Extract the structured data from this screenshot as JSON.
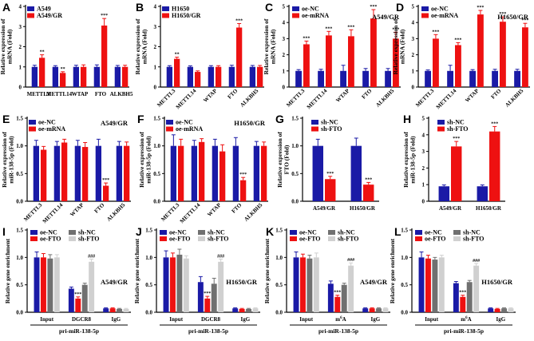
{
  "figure_caption_less": true,
  "colors": {
    "blue": "#1a1aa6",
    "red": "#ee1111",
    "dgray": "#707070",
    "lgray": "#d0d0d0",
    "axis": "#000000"
  },
  "chart_data": [
    {
      "id": "A",
      "type": "bar",
      "ylabel": "Relative expression of mRNA (Fold)",
      "ylim": [
        0,
        4
      ],
      "yticks": [
        0,
        1,
        2,
        3,
        4
      ],
      "categories": [
        "METTL3",
        "METTL14",
        "WTAP",
        "FTO",
        "ALKBH5"
      ],
      "cat_rotate": false,
      "series": [
        {
          "name": "A549",
          "color": "blue",
          "values": [
            1.0,
            1.0,
            1.0,
            1.0,
            1.0
          ],
          "errors": [
            0.08,
            0.06,
            0.08,
            0.1,
            0.07
          ]
        },
        {
          "name": "A549/GR",
          "color": "red",
          "values": [
            1.45,
            0.7,
            1.0,
            3.05,
            1.0
          ],
          "errors": [
            0.15,
            0.06,
            0.1,
            0.35,
            0.08
          ]
        }
      ],
      "sig": [
        {
          "series": 1,
          "cat": 0,
          "text": "**"
        },
        {
          "series": 1,
          "cat": 1,
          "text": "**"
        },
        {
          "series": 1,
          "cat": 3,
          "text": "***"
        }
      ]
    },
    {
      "id": "B",
      "type": "bar",
      "ylabel": "Relative expression of mRNA (Fold)",
      "ylim": [
        0,
        4
      ],
      "yticks": [
        0,
        1,
        2,
        3,
        4
      ],
      "categories": [
        "METTL3",
        "METTL14",
        "WTAP",
        "FTO",
        "ALKBH5"
      ],
      "cat_rotate": true,
      "series": [
        {
          "name": "H1650",
          "color": "blue",
          "values": [
            1.0,
            1.0,
            1.0,
            1.0,
            1.0
          ],
          "errors": [
            0.06,
            0.05,
            0.06,
            0.08,
            0.07
          ]
        },
        {
          "name": "H1650/GR",
          "color": "red",
          "values": [
            1.4,
            0.75,
            1.0,
            2.95,
            1.0
          ],
          "errors": [
            0.08,
            0.05,
            0.06,
            0.2,
            0.07
          ]
        }
      ],
      "sig": [
        {
          "series": 1,
          "cat": 0,
          "text": "**"
        },
        {
          "series": 1,
          "cat": 3,
          "text": "***"
        }
      ]
    },
    {
      "id": "C",
      "type": "bar",
      "ylabel": "Relative expression of mRNA (Fold)",
      "ylim": [
        0,
        5
      ],
      "yticks": [
        0,
        1,
        2,
        3,
        4,
        5
      ],
      "categories": [
        "METTL3",
        "METTL14",
        "WTAP",
        "FTO",
        "ALKBH5"
      ],
      "cat_rotate": true,
      "annotation": "A549/GR",
      "series": [
        {
          "name": "oe-NC",
          "color": "blue",
          "values": [
            1.0,
            1.0,
            1.0,
            1.0,
            1.0
          ],
          "errors": [
            0.08,
            0.1,
            0.35,
            0.15,
            0.15
          ]
        },
        {
          "name": "oe-mRNA",
          "color": "red",
          "values": [
            2.65,
            3.2,
            3.15,
            4.25,
            3.0
          ],
          "errors": [
            0.2,
            0.25,
            0.4,
            0.55,
            0.4
          ]
        }
      ],
      "sig": [
        {
          "series": 1,
          "cat": 0,
          "text": "***"
        },
        {
          "series": 1,
          "cat": 1,
          "text": "***"
        },
        {
          "series": 1,
          "cat": 2,
          "text": "***"
        },
        {
          "series": 1,
          "cat": 3,
          "text": "***"
        },
        {
          "series": 1,
          "cat": 4,
          "text": "***"
        }
      ]
    },
    {
      "id": "D",
      "type": "bar",
      "ylabel": "Relative expression of mRNA (Fold)",
      "ylim": [
        0,
        5
      ],
      "yticks": [
        0,
        1,
        2,
        3,
        4,
        5
      ],
      "categories": [
        "METTL3",
        "METTL14",
        "WTAP",
        "FTO",
        "ALKBH5"
      ],
      "cat_rotate": true,
      "annotation": "H1650/GR",
      "series": [
        {
          "name": "oe-NC",
          "color": "blue",
          "values": [
            1.0,
            1.0,
            1.0,
            1.0,
            1.0
          ],
          "errors": [
            0.06,
            0.35,
            0.08,
            0.1,
            0.1
          ]
        },
        {
          "name": "oe-mRNA",
          "color": "red",
          "values": [
            3.0,
            2.6,
            4.5,
            4.05,
            3.7
          ],
          "errors": [
            0.25,
            0.15,
            0.25,
            0.3,
            0.25
          ]
        }
      ],
      "sig": [
        {
          "series": 1,
          "cat": 0,
          "text": "***"
        },
        {
          "series": 1,
          "cat": 1,
          "text": "***"
        },
        {
          "series": 1,
          "cat": 2,
          "text": "***"
        },
        {
          "series": 1,
          "cat": 3,
          "text": "***"
        },
        {
          "series": 1,
          "cat": 4,
          "text": "***"
        }
      ]
    },
    {
      "id": "E",
      "type": "bar",
      "ylabel": "Relative expression of miR-138-5p (Fold)",
      "ylim": [
        0,
        1.5
      ],
      "yticks": [
        0.0,
        0.5,
        1.0,
        1.5
      ],
      "categories": [
        "METTL3",
        "METTL14",
        "WTAP",
        "FTO",
        "ALKBH5"
      ],
      "cat_rotate": true,
      "annotation": "A549/GR",
      "series": [
        {
          "name": "oe-NC",
          "color": "blue",
          "values": [
            1.0,
            1.0,
            1.0,
            1.0,
            1.0
          ],
          "errors": [
            0.1,
            0.08,
            0.1,
            0.12,
            0.08
          ]
        },
        {
          "name": "oe-mRNA",
          "color": "red",
          "values": [
            0.93,
            1.06,
            0.98,
            0.28,
            1.0
          ],
          "errors": [
            0.06,
            0.06,
            0.08,
            0.05,
            0.07
          ]
        }
      ],
      "sig": [
        {
          "series": 1,
          "cat": 3,
          "text": "***"
        }
      ]
    },
    {
      "id": "F",
      "type": "bar",
      "ylabel": "Relative expression of miR-138-5p (Fold)",
      "ylim": [
        0,
        1.5
      ],
      "yticks": [
        0.0,
        0.5,
        1.0,
        1.5
      ],
      "categories": [
        "METTL3",
        "METTL14",
        "WTAP",
        "FTO",
        "ALKBH5"
      ],
      "cat_rotate": true,
      "annotation": "H1650/GR",
      "series": [
        {
          "name": "oe-NC",
          "color": "blue",
          "values": [
            1.0,
            1.0,
            1.0,
            1.0,
            1.0
          ],
          "errors": [
            0.2,
            0.1,
            0.12,
            0.15,
            0.08
          ]
        },
        {
          "name": "oe-mRNA",
          "color": "red",
          "values": [
            1.0,
            1.07,
            0.9,
            0.38,
            1.0
          ],
          "errors": [
            0.12,
            0.06,
            0.12,
            0.05,
            0.07
          ]
        }
      ],
      "sig": [
        {
          "series": 1,
          "cat": 3,
          "text": "***"
        }
      ]
    },
    {
      "id": "G",
      "type": "bar",
      "ylabel": "Relative expression of FTO (Fold)",
      "ylim": [
        0,
        1.5
      ],
      "yticks": [
        0.0,
        0.5,
        1.0,
        1.5
      ],
      "categories": [
        "A549/GR",
        "H1650/GR"
      ],
      "cat_rotate": false,
      "series": [
        {
          "name": "sh-NC",
          "color": "blue",
          "values": [
            1.0,
            1.0
          ],
          "errors": [
            0.12,
            0.14
          ]
        },
        {
          "name": "sh-FTO",
          "color": "red",
          "values": [
            0.4,
            0.3
          ],
          "errors": [
            0.05,
            0.04
          ]
        }
      ],
      "sig": [
        {
          "series": 1,
          "cat": 0,
          "text": "***"
        },
        {
          "series": 1,
          "cat": 1,
          "text": "***"
        }
      ]
    },
    {
      "id": "H",
      "type": "bar",
      "ylabel": "Relative expression of miR-138-5p (Fold)",
      "ylim": [
        0,
        5
      ],
      "yticks": [
        0,
        1,
        2,
        3,
        4,
        5
      ],
      "categories": [
        "A549/GR",
        "H1650/GR"
      ],
      "cat_rotate": false,
      "series": [
        {
          "name": "sh-NC",
          "color": "blue",
          "values": [
            0.9,
            0.9
          ],
          "errors": [
            0.08,
            0.08
          ]
        },
        {
          "name": "sh-FTO",
          "color": "red",
          "values": [
            3.3,
            4.2
          ],
          "errors": [
            0.3,
            0.3
          ]
        }
      ],
      "sig": [
        {
          "series": 1,
          "cat": 0,
          "text": "***"
        },
        {
          "series": 1,
          "cat": 1,
          "text": "***"
        }
      ]
    },
    {
      "id": "I",
      "type": "bar",
      "ylabel": "Relative gene enrichment",
      "ylim": [
        0,
        1.5
      ],
      "yticks": [
        0.0,
        0.5,
        1.0,
        1.5
      ],
      "categories": [
        "Input",
        "DGCR8",
        "IgG"
      ],
      "cat_rotate": false,
      "group_label": "pri-miR-138-5p",
      "annotation": "A549/GR",
      "legend_layout": "grid",
      "series": [
        {
          "name": "oe-NC",
          "color": "blue",
          "values": [
            1.0,
            0.43,
            0.07
          ],
          "errors": [
            0.1,
            0.03,
            0.01
          ]
        },
        {
          "name": "oe-FTO",
          "color": "red",
          "values": [
            1.0,
            0.25,
            0.07
          ],
          "errors": [
            0.07,
            0.03,
            0.01
          ]
        },
        {
          "name": "sh-NC",
          "color": "dgray",
          "values": [
            0.98,
            0.5,
            0.06
          ],
          "errors": [
            0.07,
            0.03,
            0.01
          ]
        },
        {
          "name": "sh-FTO",
          "color": "lgray",
          "values": [
            1.0,
            0.92,
            0.06
          ],
          "errors": [
            0.05,
            0.05,
            0.01
          ]
        }
      ],
      "sig": [
        {
          "series": 1,
          "cat": 1,
          "text": "***"
        },
        {
          "series": 3,
          "cat": 1,
          "text": "###"
        }
      ]
    },
    {
      "id": "J",
      "type": "bar",
      "ylabel": "Relative gene enrichment",
      "ylim": [
        0,
        1.5
      ],
      "yticks": [
        0.0,
        0.5,
        1.0,
        1.5
      ],
      "categories": [
        "Input",
        "DGCR8",
        "IgG"
      ],
      "cat_rotate": false,
      "group_label": "pri-miR-138-5p",
      "annotation": "H1650/GR",
      "legend_layout": "grid",
      "series": [
        {
          "name": "oe-NC",
          "color": "blue",
          "values": [
            1.0,
            0.55,
            0.07
          ],
          "errors": [
            0.12,
            0.1,
            0.01
          ]
        },
        {
          "name": "oe-FTO",
          "color": "red",
          "values": [
            1.0,
            0.25,
            0.06
          ],
          "errors": [
            0.08,
            0.04,
            0.01
          ]
        },
        {
          "name": "sh-NC",
          "color": "dgray",
          "values": [
            1.05,
            0.52,
            0.06
          ],
          "errors": [
            0.1,
            0.1,
            0.01
          ]
        },
        {
          "name": "sh-FTO",
          "color": "lgray",
          "values": [
            0.98,
            0.92,
            0.07
          ],
          "errors": [
            0.05,
            0.05,
            0.01
          ]
        }
      ],
      "sig": [
        {
          "series": 1,
          "cat": 1,
          "text": "***"
        },
        {
          "series": 3,
          "cat": 1,
          "text": "###"
        }
      ]
    },
    {
      "id": "K",
      "type": "bar",
      "ylabel": "Relative gene enrichment",
      "ylim": [
        0,
        1.5
      ],
      "yticks": [
        0.0,
        0.5,
        1.0,
        1.5
      ],
      "categories": [
        "Input",
        "m6A",
        "IgG"
      ],
      "cat_rotate": false,
      "group_label": "pri-miR-138-5p",
      "annotation": "A549/GR",
      "legend_layout": "grid",
      "series": [
        {
          "name": "oe-NC",
          "color": "blue",
          "values": [
            1.0,
            0.52,
            0.07
          ],
          "errors": [
            0.1,
            0.05,
            0.01
          ]
        },
        {
          "name": "oe-FTO",
          "color": "red",
          "values": [
            1.0,
            0.28,
            0.07
          ],
          "errors": [
            0.06,
            0.03,
            0.01
          ]
        },
        {
          "name": "sh-NC",
          "color": "dgray",
          "values": [
            0.98,
            0.5,
            0.07
          ],
          "errors": [
            0.06,
            0.03,
            0.01
          ]
        },
        {
          "name": "sh-FTO",
          "color": "lgray",
          "values": [
            1.0,
            0.85,
            0.07
          ],
          "errors": [
            0.08,
            0.05,
            0.01
          ]
        }
      ],
      "sig": [
        {
          "series": 1,
          "cat": 1,
          "text": "***"
        },
        {
          "series": 3,
          "cat": 1,
          "text": "###"
        }
      ]
    },
    {
      "id": "L",
      "type": "bar",
      "ylabel": "Relative gene enrichment",
      "ylim": [
        0,
        1.5
      ],
      "yticks": [
        0.0,
        0.5,
        1.0,
        1.5
      ],
      "categories": [
        "Input",
        "m6A",
        "IgG"
      ],
      "cat_rotate": false,
      "group_label": "pri-miR-138-5p",
      "annotation": "H1650/GR",
      "legend_layout": "grid",
      "series": [
        {
          "name": "oe-NC",
          "color": "blue",
          "values": [
            1.0,
            0.53,
            0.07
          ],
          "errors": [
            0.1,
            0.03,
            0.01
          ]
        },
        {
          "name": "oe-FTO",
          "color": "red",
          "values": [
            0.98,
            0.28,
            0.06
          ],
          "errors": [
            0.06,
            0.03,
            0.01
          ]
        },
        {
          "name": "sh-NC",
          "color": "dgray",
          "values": [
            0.96,
            0.55,
            0.07
          ],
          "errors": [
            0.04,
            0.03,
            0.01
          ]
        },
        {
          "name": "sh-FTO",
          "color": "lgray",
          "values": [
            1.0,
            0.85,
            0.07
          ],
          "errors": [
            0.04,
            0.04,
            0.01
          ]
        }
      ],
      "sig": [
        {
          "series": 1,
          "cat": 1,
          "text": "***"
        },
        {
          "series": 3,
          "cat": 1,
          "text": "###"
        }
      ]
    }
  ]
}
